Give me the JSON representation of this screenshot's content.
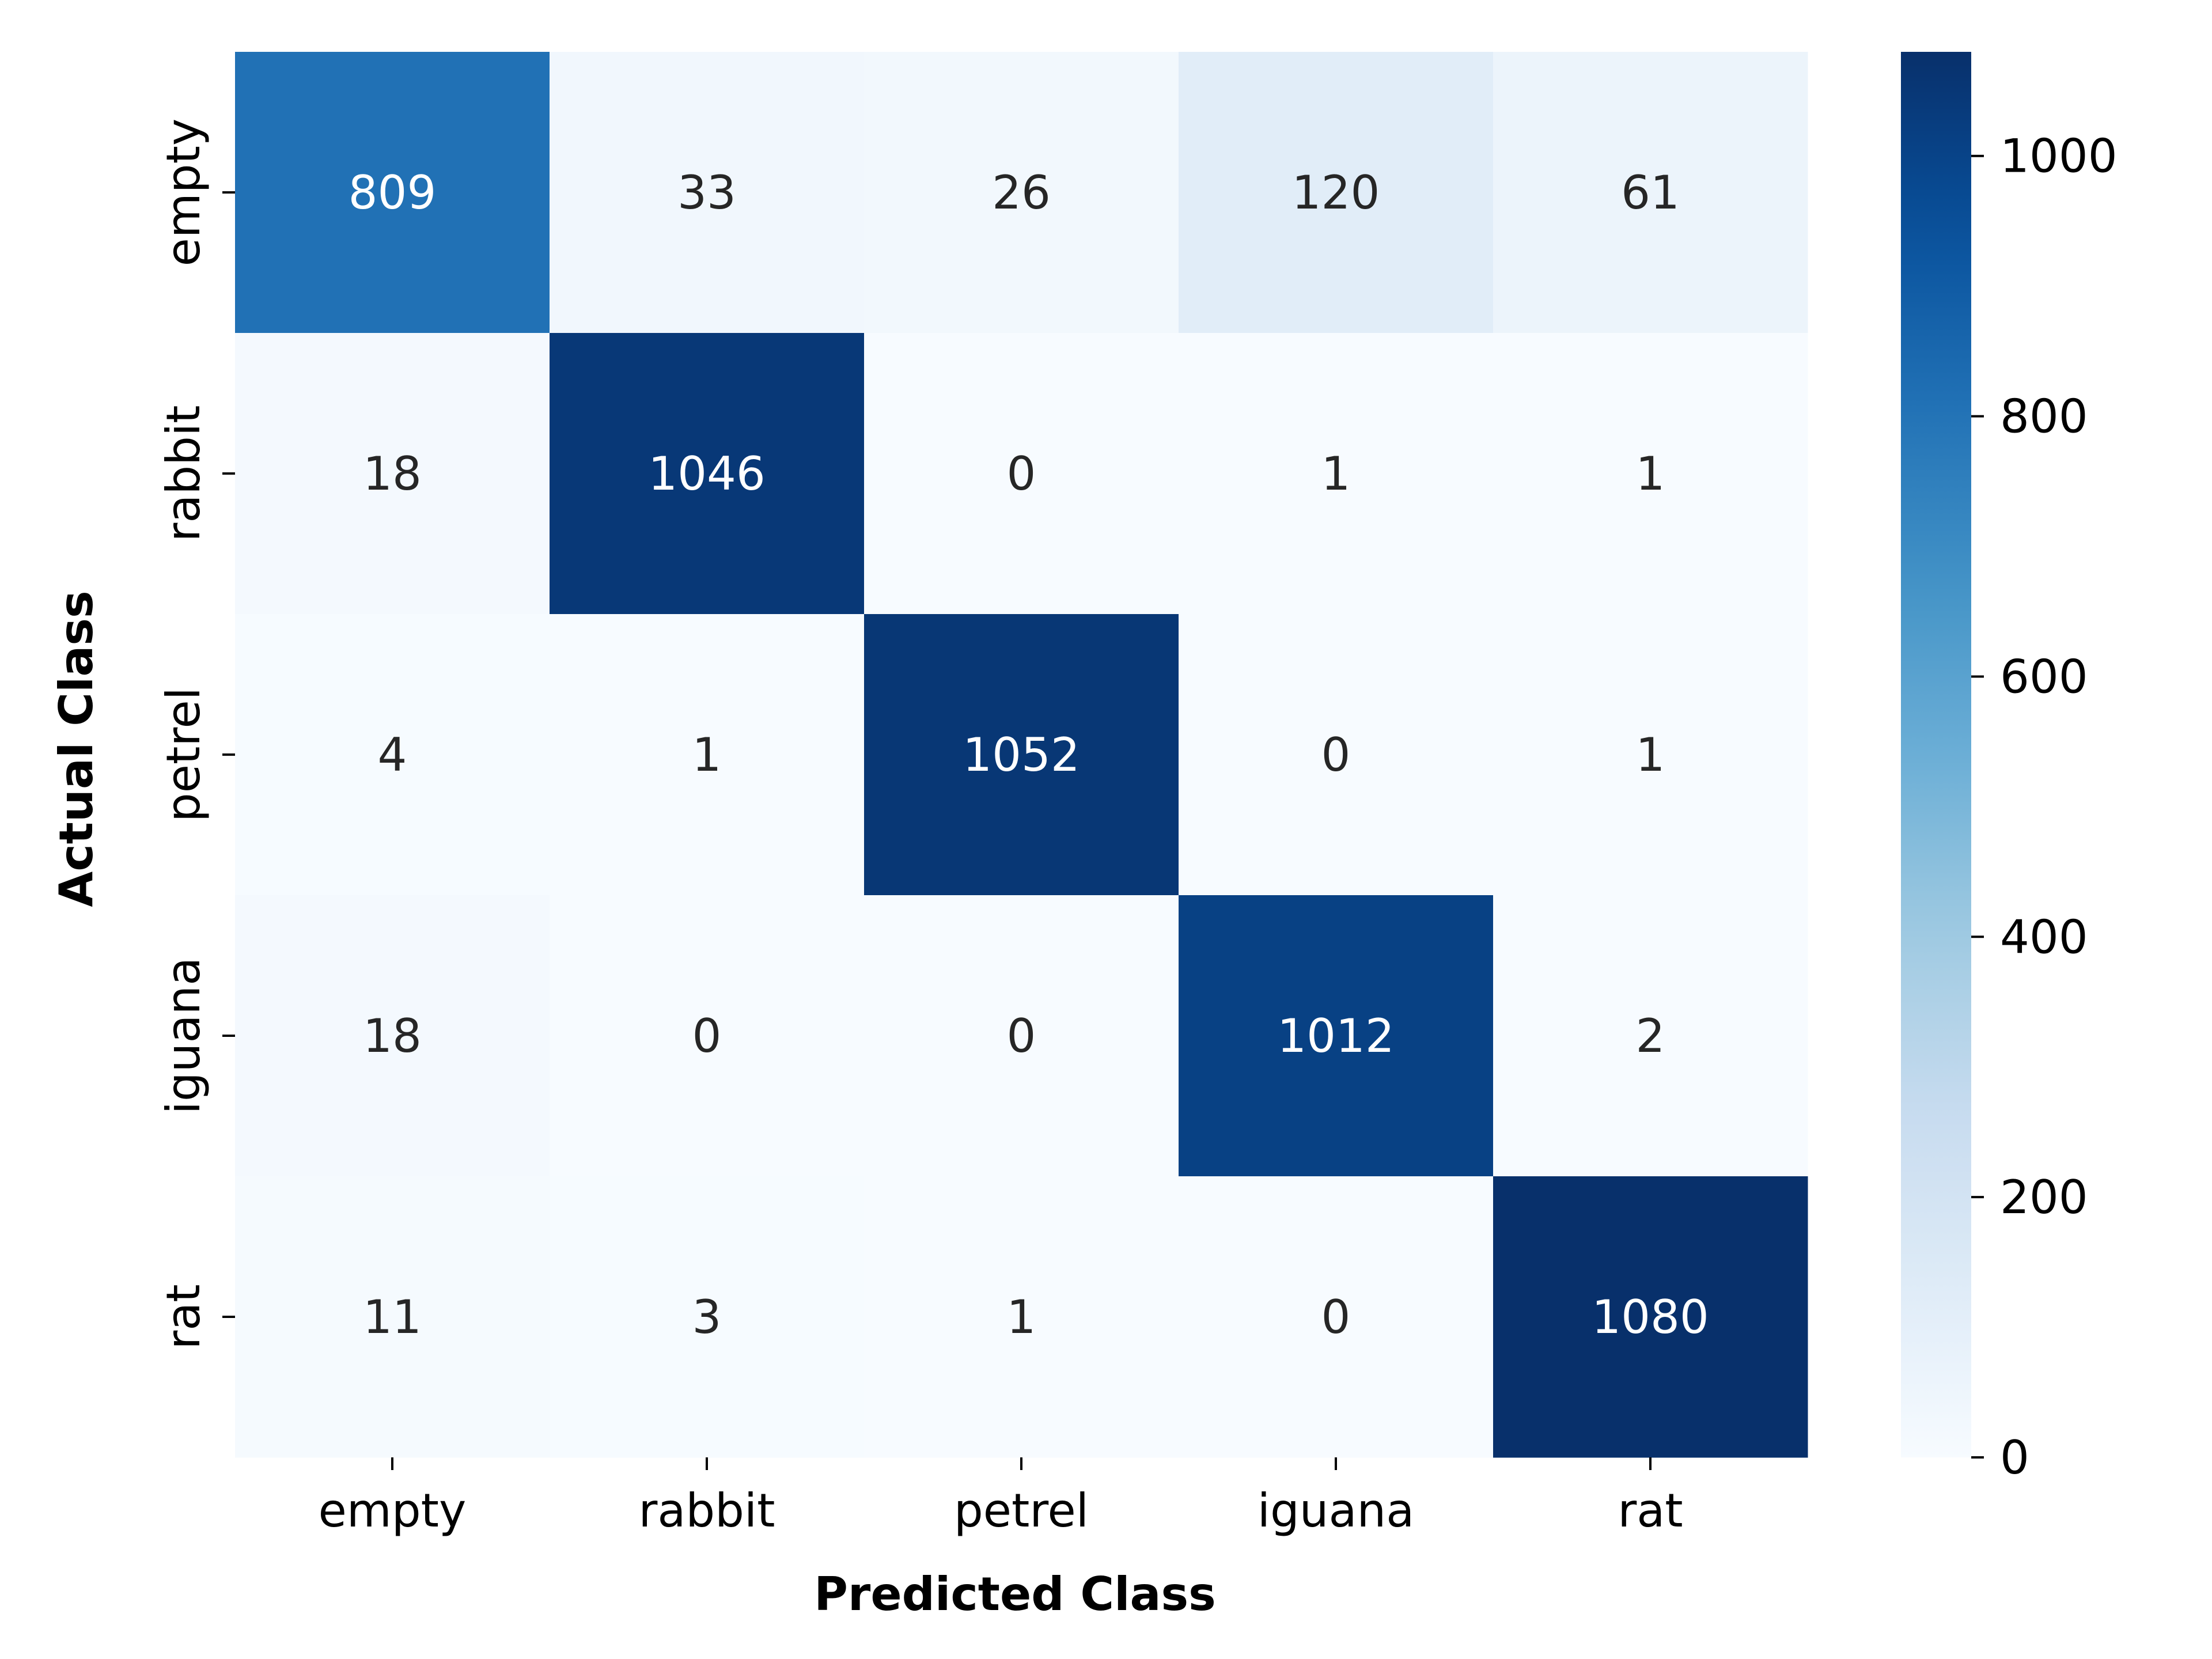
{
  "chart_data": {
    "type": "heatmap",
    "title": "",
    "xlabel": "Predicted Class",
    "ylabel": "Actual Class",
    "x_categories": [
      "empty",
      "rabbit",
      "petrel",
      "iguana",
      "rat"
    ],
    "y_categories": [
      "empty",
      "rabbit",
      "petrel",
      "iguana",
      "rat"
    ],
    "matrix": [
      [
        809,
        33,
        26,
        120,
        61
      ],
      [
        18,
        1046,
        0,
        1,
        1
      ],
      [
        4,
        1,
        1052,
        0,
        1
      ],
      [
        18,
        0,
        0,
        1012,
        2
      ],
      [
        11,
        3,
        1,
        0,
        1080
      ]
    ],
    "colorbar": {
      "range": [
        0,
        1080
      ],
      "ticks": [
        0,
        200,
        400,
        600,
        800,
        1000
      ],
      "colormap": "Blues",
      "low_color": "#f7fbff",
      "high_color": "#08306b"
    },
    "annotation_text_colors": {
      "on_light": "#262626",
      "on_dark": "#ffffff"
    },
    "grid": false,
    "legend": "colorbar at right"
  }
}
